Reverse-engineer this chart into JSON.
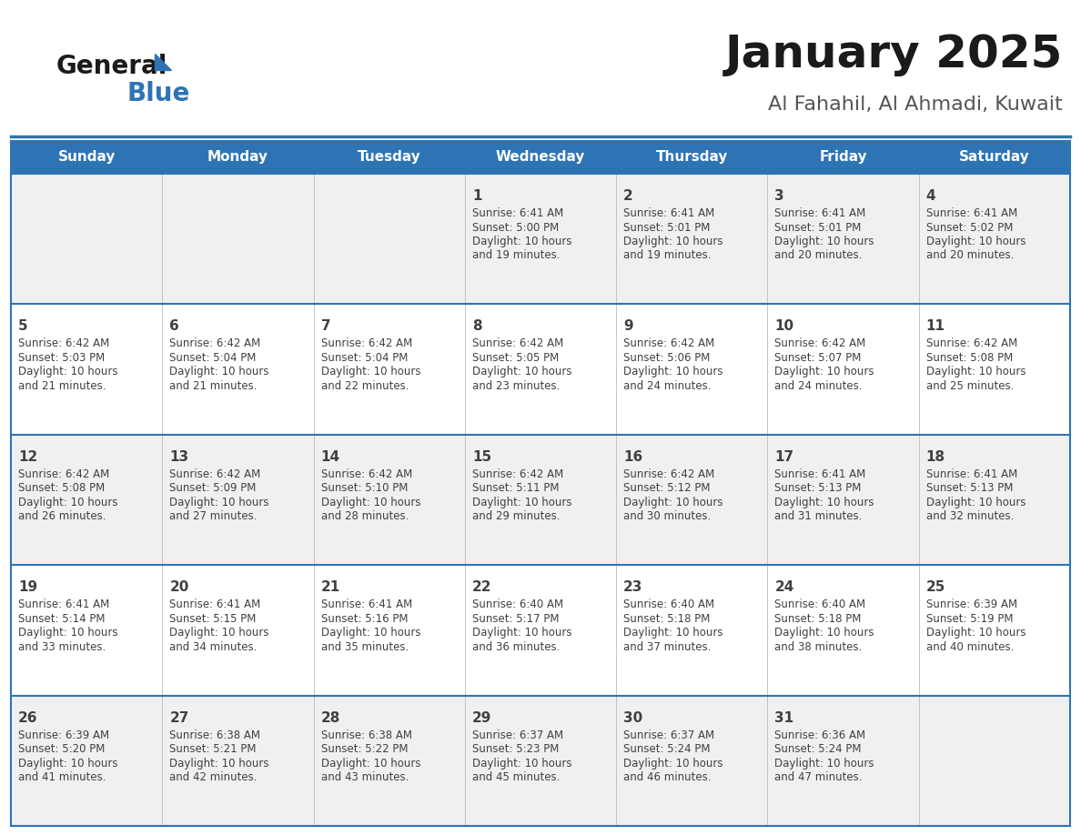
{
  "title": "January 2025",
  "subtitle": "Al Fahahil, Al Ahmadi, Kuwait",
  "header_bg": "#2E74B5",
  "header_text_color": "#FFFFFF",
  "cell_bg_odd": "#F0F0F0",
  "cell_bg_even": "#FFFFFF",
  "border_color": "#2E74B5",
  "text_color": "#404040",
  "days_of_week": [
    "Sunday",
    "Monday",
    "Tuesday",
    "Wednesday",
    "Thursday",
    "Friday",
    "Saturday"
  ],
  "calendar_data": [
    [
      {
        "day": null,
        "sunrise": null,
        "sunset": null,
        "daylight_min": null
      },
      {
        "day": null,
        "sunrise": null,
        "sunset": null,
        "daylight_min": null
      },
      {
        "day": null,
        "sunrise": null,
        "sunset": null,
        "daylight_min": null
      },
      {
        "day": 1,
        "sunrise": "6:41 AM",
        "sunset": "5:00 PM",
        "daylight_min": 19
      },
      {
        "day": 2,
        "sunrise": "6:41 AM",
        "sunset": "5:01 PM",
        "daylight_min": 19
      },
      {
        "day": 3,
        "sunrise": "6:41 AM",
        "sunset": "5:01 PM",
        "daylight_min": 20
      },
      {
        "day": 4,
        "sunrise": "6:41 AM",
        "sunset": "5:02 PM",
        "daylight_min": 20
      }
    ],
    [
      {
        "day": 5,
        "sunrise": "6:42 AM",
        "sunset": "5:03 PM",
        "daylight_min": 21
      },
      {
        "day": 6,
        "sunrise": "6:42 AM",
        "sunset": "5:04 PM",
        "daylight_min": 21
      },
      {
        "day": 7,
        "sunrise": "6:42 AM",
        "sunset": "5:04 PM",
        "daylight_min": 22
      },
      {
        "day": 8,
        "sunrise": "6:42 AM",
        "sunset": "5:05 PM",
        "daylight_min": 23
      },
      {
        "day": 9,
        "sunrise": "6:42 AM",
        "sunset": "5:06 PM",
        "daylight_min": 24
      },
      {
        "day": 10,
        "sunrise": "6:42 AM",
        "sunset": "5:07 PM",
        "daylight_min": 24
      },
      {
        "day": 11,
        "sunrise": "6:42 AM",
        "sunset": "5:08 PM",
        "daylight_min": 25
      }
    ],
    [
      {
        "day": 12,
        "sunrise": "6:42 AM",
        "sunset": "5:08 PM",
        "daylight_min": 26
      },
      {
        "day": 13,
        "sunrise": "6:42 AM",
        "sunset": "5:09 PM",
        "daylight_min": 27
      },
      {
        "day": 14,
        "sunrise": "6:42 AM",
        "sunset": "5:10 PM",
        "daylight_min": 28
      },
      {
        "day": 15,
        "sunrise": "6:42 AM",
        "sunset": "5:11 PM",
        "daylight_min": 29
      },
      {
        "day": 16,
        "sunrise": "6:42 AM",
        "sunset": "5:12 PM",
        "daylight_min": 30
      },
      {
        "day": 17,
        "sunrise": "6:41 AM",
        "sunset": "5:13 PM",
        "daylight_min": 31
      },
      {
        "day": 18,
        "sunrise": "6:41 AM",
        "sunset": "5:13 PM",
        "daylight_min": 32
      }
    ],
    [
      {
        "day": 19,
        "sunrise": "6:41 AM",
        "sunset": "5:14 PM",
        "daylight_min": 33
      },
      {
        "day": 20,
        "sunrise": "6:41 AM",
        "sunset": "5:15 PM",
        "daylight_min": 34
      },
      {
        "day": 21,
        "sunrise": "6:41 AM",
        "sunset": "5:16 PM",
        "daylight_min": 35
      },
      {
        "day": 22,
        "sunrise": "6:40 AM",
        "sunset": "5:17 PM",
        "daylight_min": 36
      },
      {
        "day": 23,
        "sunrise": "6:40 AM",
        "sunset": "5:18 PM",
        "daylight_min": 37
      },
      {
        "day": 24,
        "sunrise": "6:40 AM",
        "sunset": "5:18 PM",
        "daylight_min": 38
      },
      {
        "day": 25,
        "sunrise": "6:39 AM",
        "sunset": "5:19 PM",
        "daylight_min": 40
      }
    ],
    [
      {
        "day": 26,
        "sunrise": "6:39 AM",
        "sunset": "5:20 PM",
        "daylight_min": 41
      },
      {
        "day": 27,
        "sunrise": "6:38 AM",
        "sunset": "5:21 PM",
        "daylight_min": 42
      },
      {
        "day": 28,
        "sunrise": "6:38 AM",
        "sunset": "5:22 PM",
        "daylight_min": 43
      },
      {
        "day": 29,
        "sunrise": "6:37 AM",
        "sunset": "5:23 PM",
        "daylight_min": 45
      },
      {
        "day": 30,
        "sunrise": "6:37 AM",
        "sunset": "5:24 PM",
        "daylight_min": 46
      },
      {
        "day": 31,
        "sunrise": "6:36 AM",
        "sunset": "5:24 PM",
        "daylight_min": 47
      },
      {
        "day": null,
        "sunrise": null,
        "sunset": null,
        "daylight_min": null
      }
    ]
  ],
  "logo_color_general": "#1a1a1a",
  "logo_color_blue": "#2E74B5",
  "title_fontsize": 36,
  "subtitle_fontsize": 16,
  "header_fontsize": 11,
  "day_num_fontsize": 11,
  "cell_text_fontsize": 8.5
}
